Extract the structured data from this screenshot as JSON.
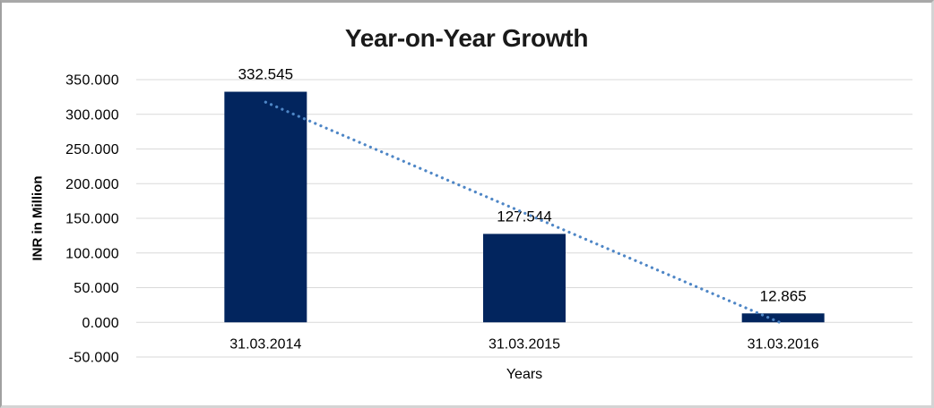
{
  "chart_data": {
    "type": "bar",
    "title": "Year-on-Year Growth",
    "xlabel": "Years",
    "ylabel": "INR in Million",
    "categories": [
      "31.03.2014",
      "31.03.2015",
      "31.03.2016"
    ],
    "values": [
      332.545,
      127.544,
      12.865
    ],
    "data_labels": [
      "332.545",
      "127.544",
      "12.865"
    ],
    "ylim": [
      -50,
      350
    ],
    "ytick_step": 50,
    "ytick_labels": [
      "350.000",
      "300.000",
      "250.000",
      "200.000",
      "150.000",
      "100.000",
      "50.000",
      "0.000",
      "-50.000"
    ],
    "grid": "horizontal",
    "gridline_color": "#d9d9d9",
    "legend": "none",
    "bar_color": "#02255e",
    "trendline": {
      "type": "linear",
      "style": "dotted",
      "color": "#4e86c6",
      "start_value": 317.5,
      "end_value": -2.2
    }
  }
}
